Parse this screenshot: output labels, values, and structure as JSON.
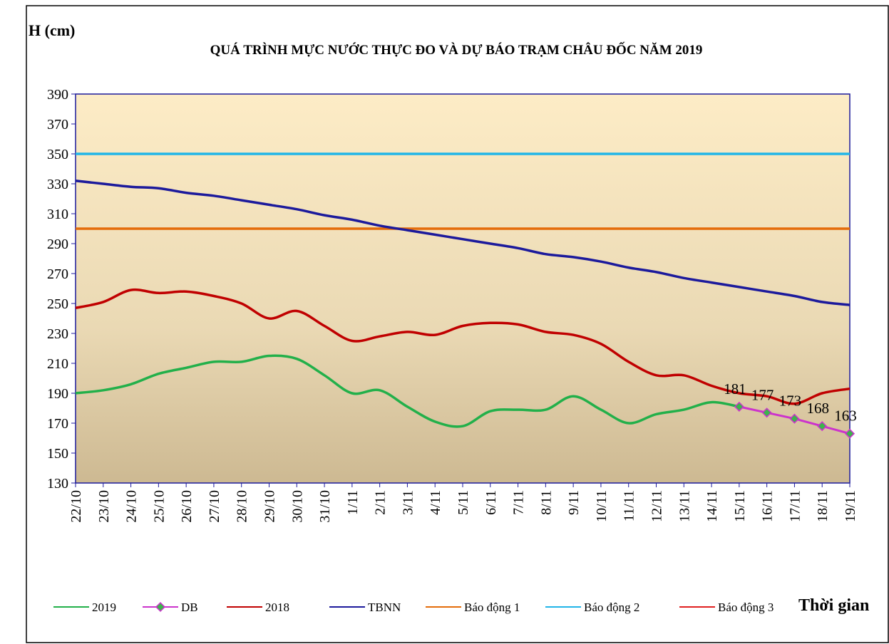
{
  "chart_data": {
    "type": "line",
    "title": "QUÁ TRÌNH MỰC NƯỚC THỰC ĐO VÀ DỰ BÁO TRẠM CHÂU ĐỐC NĂM 2019",
    "y_label": "H (cm)",
    "x_label": "Thời gian",
    "categories": [
      "22/10",
      "23/10",
      "24/10",
      "25/10",
      "26/10",
      "27/10",
      "28/10",
      "29/10",
      "30/10",
      "31/10",
      "1/11",
      "2/11",
      "3/11",
      "4/11",
      "5/11",
      "6/11",
      "7/11",
      "8/11",
      "9/11",
      "10/11",
      "11/11",
      "12/11",
      "13/11",
      "14/11",
      "15/11",
      "16/11",
      "17/11",
      "18/11",
      "19/11"
    ],
    "ylim": [
      130,
      390
    ],
    "yticks": [
      130,
      150,
      170,
      190,
      210,
      230,
      250,
      270,
      290,
      310,
      330,
      350,
      370,
      390
    ],
    "series": [
      {
        "name": "2019",
        "color": "#22b04a",
        "smooth": true,
        "values": [
          190,
          192,
          196,
          203,
          207,
          211,
          211,
          215,
          213,
          202,
          190,
          192,
          181,
          171,
          168,
          178,
          179,
          179,
          188,
          179,
          170,
          176,
          179,
          184,
          181,
          null,
          null,
          null,
          null
        ]
      },
      {
        "name": "DB",
        "color": "#cc33cc",
        "marker": "diamond",
        "marker_color": "#3cb44b",
        "data_labels": true,
        "values": [
          null,
          null,
          null,
          null,
          null,
          null,
          null,
          null,
          null,
          null,
          null,
          null,
          null,
          null,
          null,
          null,
          null,
          null,
          null,
          null,
          null,
          null,
          null,
          null,
          181,
          177,
          173,
          168,
          163
        ]
      },
      {
        "name": "2018",
        "color": "#c00000",
        "smooth": true,
        "values": [
          247,
          251,
          259,
          257,
          258,
          255,
          250,
          240,
          245,
          235,
          225,
          228,
          231,
          229,
          235,
          237,
          236,
          231,
          229,
          223,
          211,
          202,
          202,
          195,
          190,
          188,
          183,
          190,
          193
        ]
      },
      {
        "name": "TBNN",
        "color": "#1c1a9c",
        "smooth": true,
        "values": [
          332,
          330,
          328,
          327,
          324,
          322,
          319,
          316,
          313,
          309,
          306,
          302,
          299,
          296,
          293,
          290,
          287,
          283,
          281,
          278,
          274,
          271,
          267,
          264,
          261,
          258,
          255,
          251,
          249
        ]
      },
      {
        "name": "Báo động 1",
        "color": "#e46c0a",
        "values": [
          300,
          300,
          300,
          300,
          300,
          300,
          300,
          300,
          300,
          300,
          300,
          300,
          300,
          300,
          300,
          300,
          300,
          300,
          300,
          300,
          300,
          300,
          300,
          300,
          300,
          300,
          300,
          300,
          300
        ]
      },
      {
        "name": "Báo động 2",
        "color": "#21b5e8",
        "values": [
          350,
          350,
          350,
          350,
          350,
          350,
          350,
          350,
          350,
          350,
          350,
          350,
          350,
          350,
          350,
          350,
          350,
          350,
          350,
          350,
          350,
          350,
          350,
          350,
          350,
          350,
          350,
          350,
          350
        ]
      },
      {
        "name": "Báo động 3",
        "color": "#e02020",
        "values": [
          null,
          null,
          null,
          null,
          null,
          null,
          null,
          null,
          null,
          null,
          null,
          null,
          null,
          null,
          null,
          null,
          null,
          null,
          null,
          null,
          null,
          null,
          null,
          null,
          null,
          null,
          null,
          null,
          null
        ]
      }
    ]
  }
}
